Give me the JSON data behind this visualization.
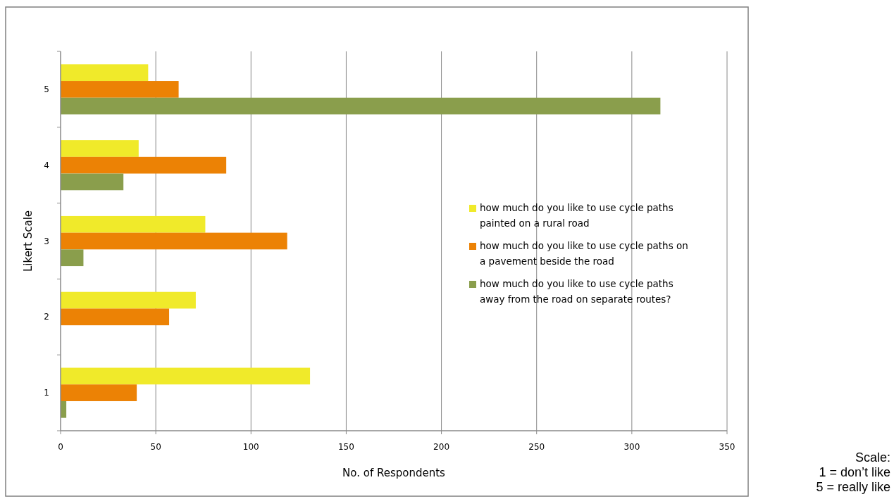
{
  "chart_data": {
    "type": "bar",
    "orientation": "horizontal",
    "categories": [
      "5",
      "4",
      "3",
      "2",
      "1"
    ],
    "series": [
      {
        "name": "how much do you like to use cycle paths painted on a rural road",
        "color": "#f0ea2a",
        "values": [
          46,
          41,
          76,
          71,
          131
        ]
      },
      {
        "name": "how much do you like to use cycle paths on a pavement beside the road",
        "color": "#ec8205",
        "values": [
          62,
          87,
          119,
          57,
          40
        ]
      },
      {
        "name": " how much do you like to use cycle paths away from the road on separate routes?",
        "color": "#8a9e4c",
        "values": [
          315,
          33,
          12,
          0,
          3
        ]
      }
    ],
    "xlim": [
      0,
      350
    ],
    "xticks": [
      0,
      50,
      100,
      150,
      200,
      250,
      300,
      350
    ],
    "xlabel": "No. of Respondents",
    "ylabel": "Likert Scale",
    "grid": "x",
    "legend": "right",
    "annotations": [
      "Scale:\n1 = don’t like\n5 = really like"
    ]
  }
}
